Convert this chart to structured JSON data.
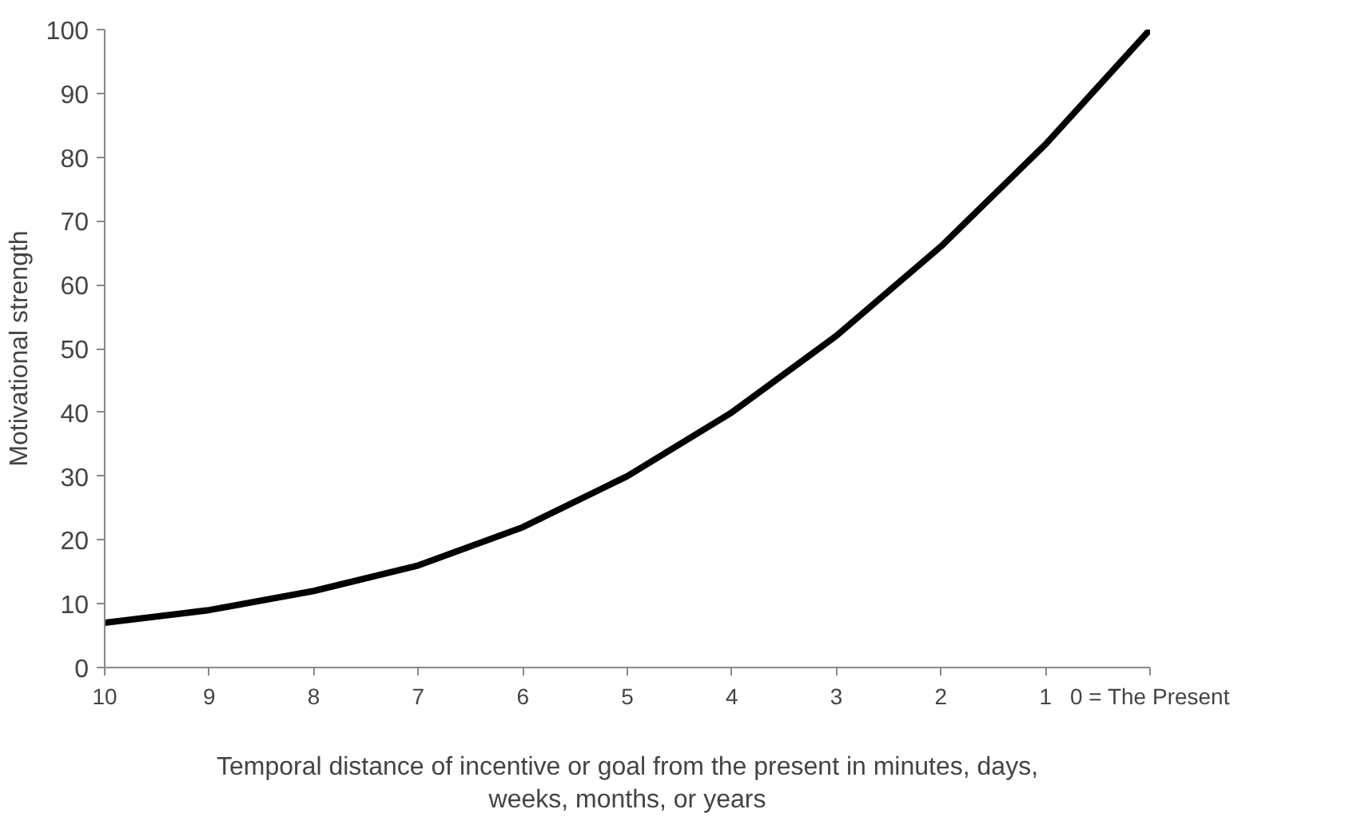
{
  "chart_data": {
    "type": "line",
    "xlabel": "Temporal distance of incentive or goal from the present in minutes, days, weeks, months, or years",
    "ylabel": "Motivational strength",
    "x": [
      10,
      9,
      8,
      7,
      6,
      5,
      4,
      3,
      2,
      1,
      0
    ],
    "series": [
      {
        "color": "#000000",
        "values": [
          7,
          9,
          12,
          16,
          22,
          30,
          40,
          52,
          66,
          82,
          100
        ]
      }
    ],
    "xlim": [
      10,
      0
    ],
    "xticks": [
      10,
      9,
      8,
      7,
      6,
      5,
      4,
      3,
      2,
      1,
      {
        "value": 0,
        "label": "0 = The Present"
      }
    ],
    "ylim": [
      0,
      100
    ],
    "yticks": [
      0,
      10,
      20,
      30,
      40,
      50,
      60,
      70,
      80,
      90,
      100
    ],
    "grid": false,
    "marker": "none",
    "line_style": "solid"
  }
}
